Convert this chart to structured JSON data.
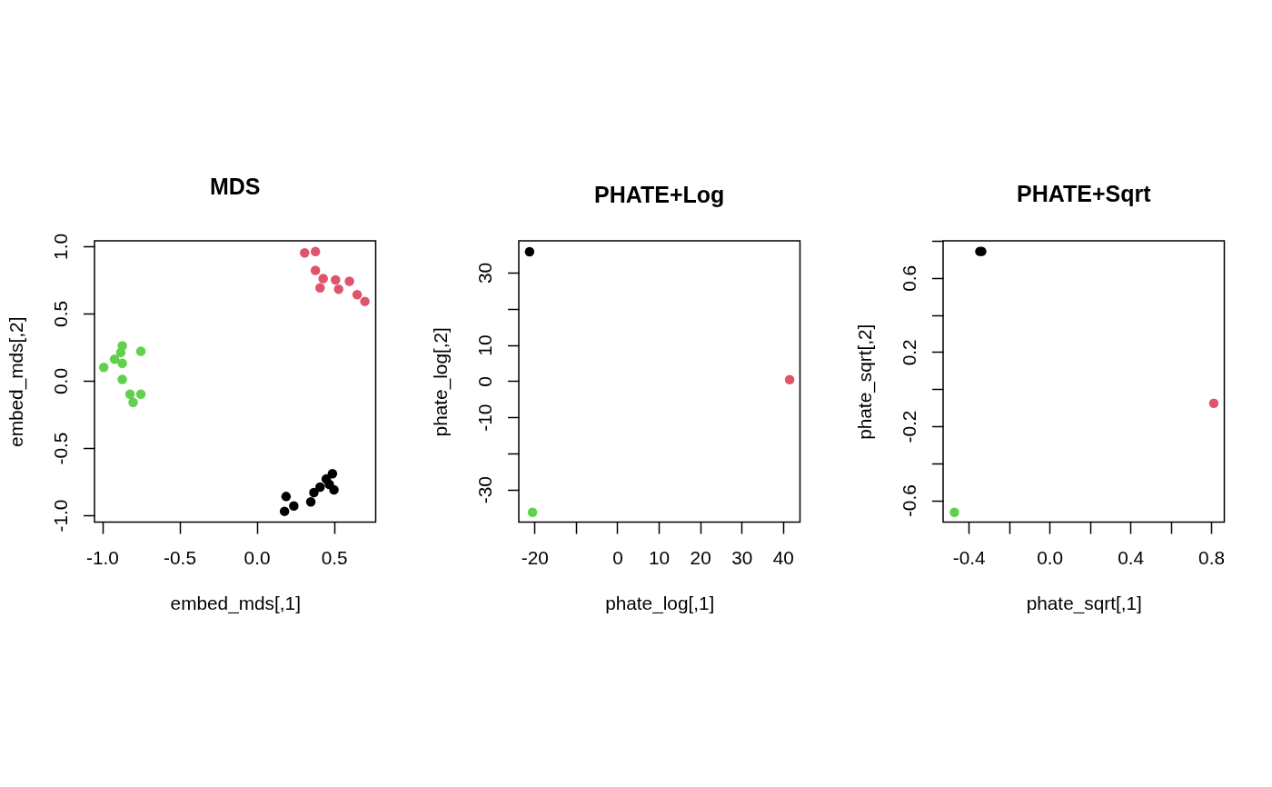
{
  "chart_data": [
    {
      "type": "scatter",
      "title": "MDS",
      "xlabel": "embed_mds[,1]",
      "ylabel": "embed_mds[,2]",
      "marker": "circle",
      "xlim": [
        -1.05,
        0.77
      ],
      "ylim": [
        -1.05,
        1.04
      ],
      "xticks": [
        {
          "value": -1,
          "label": "-1.0"
        },
        -0.5,
        {
          "value": 0,
          "label": "0.0"
        },
        0.5
      ],
      "yticks": [
        {
          "value": -1,
          "label": "-1.0"
        },
        -0.5,
        {
          "value": 0,
          "label": "0.0"
        },
        0.5,
        {
          "value": 1,
          "label": "1.0"
        }
      ],
      "series": [
        {
          "color": "#000000",
          "x": [
            0.19,
            0.24,
            0.18,
            0.35,
            0.37,
            0.41,
            0.45,
            0.49,
            0.47,
            0.5
          ],
          "values": [
            -0.86,
            -0.93,
            -0.97,
            -0.9,
            -0.83,
            -0.79,
            -0.73,
            -0.69,
            -0.77,
            -0.81
          ]
        },
        {
          "color": "#df536b",
          "x": [
            0.31,
            0.38,
            0.38,
            0.43,
            0.41,
            0.51,
            0.53,
            0.6,
            0.65,
            0.7
          ],
          "values": [
            0.95,
            0.96,
            0.82,
            0.76,
            0.69,
            0.75,
            0.68,
            0.74,
            0.64,
            0.59
          ]
        },
        {
          "color": "#61d04f",
          "x": [
            -0.87,
            -0.88,
            -0.92,
            -0.87,
            -0.99,
            -0.75,
            -0.87,
            -0.82,
            -0.75,
            -0.8
          ],
          "values": [
            0.26,
            0.21,
            0.16,
            0.13,
            0.1,
            0.22,
            0.01,
            -0.1,
            -0.1,
            -0.16
          ]
        }
      ]
    },
    {
      "type": "scatter",
      "title": "PHATE+Log",
      "xlabel": "phate_log[,1]",
      "ylabel": "phate_log[,2]",
      "marker": "circle",
      "xlim": [
        -23.8,
        44.1
      ],
      "ylim": [
        -39.0,
        38.8
      ],
      "xticks": [
        -20,
        {
          "value": -10,
          "label": null
        },
        0,
        10,
        20,
        30,
        40
      ],
      "yticks": [
        -30,
        {
          "value": -20,
          "label": null
        },
        -10,
        0,
        10,
        {
          "value": 20,
          "label": null
        },
        30
      ],
      "series": [
        {
          "color": "#000000",
          "x": [
            -21.2
          ],
          "values": [
            35.8
          ]
        },
        {
          "color": "#df536b",
          "x": [
            41.6
          ],
          "values": [
            0.4
          ]
        },
        {
          "color": "#61d04f",
          "x": [
            -20.5
          ],
          "values": [
            -36.3
          ]
        }
      ]
    },
    {
      "type": "scatter",
      "title": "PHATE+Sqrt",
      "xlabel": "phate_sqrt[,1]",
      "ylabel": "phate_sqrt[,2]",
      "marker": "circle",
      "xlim": [
        -0.527,
        0.865
      ],
      "ylim": [
        -0.717,
        0.8
      ],
      "xticks": [
        -0.4,
        {
          "value": -0.2,
          "label": null
        },
        {
          "value": 0,
          "label": "0.0"
        },
        {
          "value": 0.2,
          "label": null
        },
        0.4,
        {
          "value": 0.6,
          "label": null
        },
        0.8
      ],
      "yticks": [
        -0.6,
        {
          "value": -0.4,
          "label": null
        },
        -0.2,
        {
          "value": 0,
          "label": null
        },
        0.2,
        {
          "value": 0.4,
          "label": null
        },
        0.6,
        {
          "value": 0.8,
          "label": null
        }
      ],
      "series": [
        {
          "color": "#000000",
          "x": [
            -0.345,
            -0.336
          ],
          "values": [
            0.743,
            0.743
          ]
        },
        {
          "color": "#df536b",
          "x": [
            0.813
          ],
          "values": [
            -0.076
          ]
        },
        {
          "color": "#61d04f",
          "x": [
            -0.471
          ],
          "values": [
            -0.664
          ]
        }
      ]
    }
  ]
}
